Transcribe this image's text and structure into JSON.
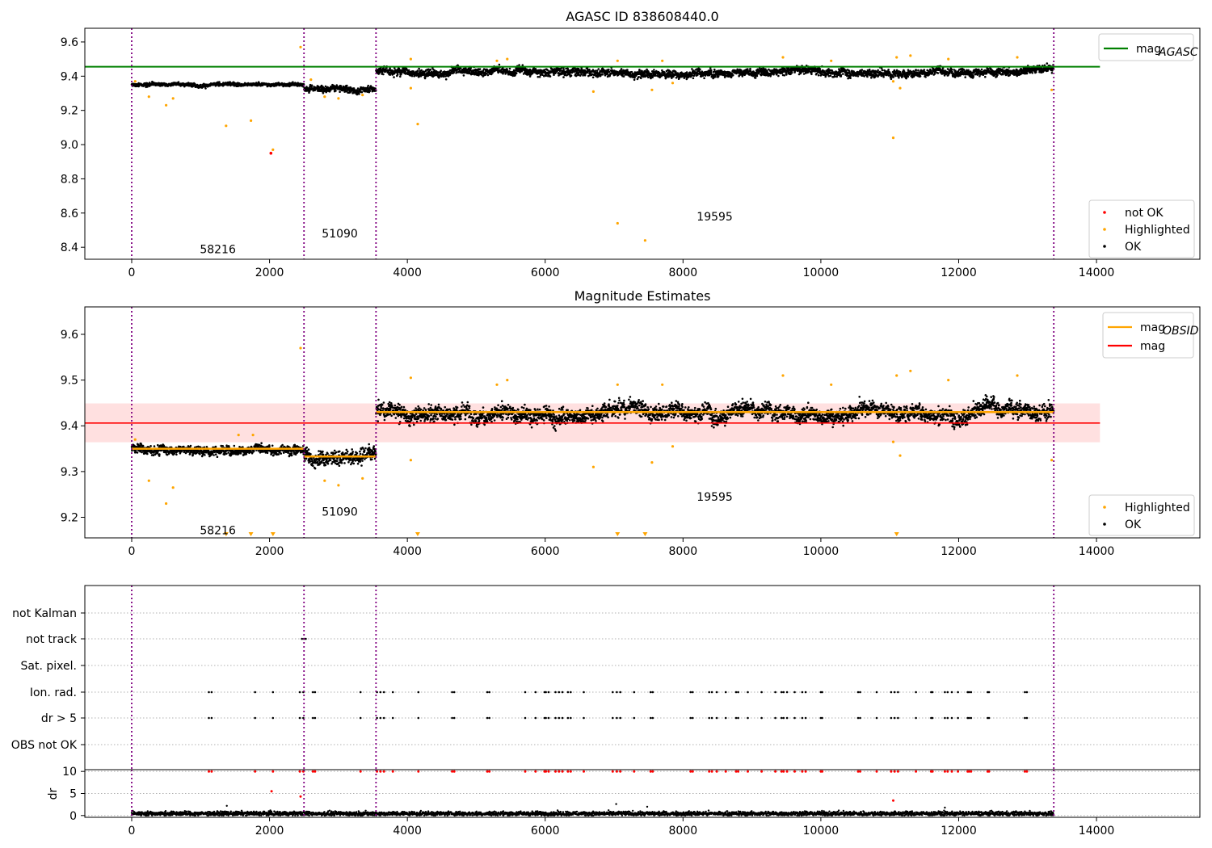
{
  "colors": {
    "ok": "#000000",
    "highlighted": "#ffa500",
    "not_ok": "#ff0000",
    "mag_agasc": "#008000",
    "mag_obsid": "#ffa500",
    "mag": "#ff0000",
    "band": "#ffcccc",
    "obs_lines": "#800080"
  },
  "chart_data": [
    {
      "type": "scatter",
      "title": "AGASC ID 838608440.0",
      "xlim": [
        -680,
        15500
      ],
      "ylim": [
        8.33,
        9.68
      ],
      "xticks": [
        0,
        2000,
        4000,
        6000,
        8000,
        10000,
        12000,
        14000
      ],
      "yticks": [
        8.4,
        8.6,
        8.8,
        9.0,
        9.2,
        9.4,
        9.6
      ],
      "obs_boundaries": [
        0,
        2500,
        3545,
        13380
      ],
      "obs_labels": [
        {
          "text": "58216",
          "x": 1250,
          "y": 8.39
        },
        {
          "text": "51090",
          "x": 3020,
          "y": 8.48
        },
        {
          "text": "19595",
          "x": 8460,
          "y": 8.58
        }
      ],
      "segments": [
        {
          "x0": 0,
          "x1": 2500,
          "mean": 9.35,
          "spread": 0.012
        },
        {
          "x0": 2500,
          "x1": 3545,
          "mean": 9.33,
          "spread": 0.022
        },
        {
          "x0": 3545,
          "x1": 13380,
          "mean": 9.43,
          "spread": 0.028
        }
      ],
      "mag_agasc_line": {
        "value": 9.455,
        "x0": -680,
        "x1": 14050
      },
      "highlighted_points": [
        [
          50,
          9.37
        ],
        [
          250,
          9.28
        ],
        [
          500,
          9.23
        ],
        [
          600,
          9.27
        ],
        [
          1370,
          9.11
        ],
        [
          1730,
          9.14
        ],
        [
          2050,
          8.97
        ],
        [
          2450,
          9.57
        ],
        [
          2600,
          9.38
        ],
        [
          2800,
          9.28
        ],
        [
          3000,
          9.27
        ],
        [
          3350,
          9.29
        ],
        [
          4050,
          9.5
        ],
        [
          4050,
          9.33
        ],
        [
          4150,
          9.12
        ],
        [
          5300,
          9.49
        ],
        [
          5450,
          9.5
        ],
        [
          6700,
          9.31
        ],
        [
          7050,
          8.54
        ],
        [
          7050,
          9.49
        ],
        [
          7450,
          8.44
        ],
        [
          7550,
          9.32
        ],
        [
          7700,
          9.49
        ],
        [
          7850,
          9.36
        ],
        [
          9450,
          9.51
        ],
        [
          10150,
          9.49
        ],
        [
          11050,
          9.04
        ],
        [
          11050,
          9.37
        ],
        [
          11100,
          9.51
        ],
        [
          11150,
          9.33
        ],
        [
          11300,
          9.52
        ],
        [
          11850,
          9.5
        ],
        [
          12850,
          9.51
        ],
        [
          13350,
          9.32
        ]
      ],
      "not_ok_points": [
        [
          2020,
          8.95
        ]
      ],
      "legend_top": [
        {
          "label": "mag",
          "sub": "AGASC"
        }
      ],
      "legend_bottom": [
        "not OK",
        "Highlighted",
        "OK"
      ]
    },
    {
      "type": "scatter",
      "title": "Magnitude Estimates",
      "xlim": [
        -680,
        15500
      ],
      "ylim": [
        9.155,
        9.66
      ],
      "xticks": [
        0,
        2000,
        4000,
        6000,
        8000,
        10000,
        12000,
        14000
      ],
      "yticks": [
        9.2,
        9.3,
        9.4,
        9.5,
        9.6
      ],
      "obs_boundaries": [
        0,
        2500,
        3545,
        13380
      ],
      "obs_labels": [
        {
          "text": "58216",
          "x": 1250,
          "y": 9.172
        },
        {
          "text": "51090",
          "x": 3020,
          "y": 9.212
        },
        {
          "text": "19595",
          "x": 8460,
          "y": 9.245
        }
      ],
      "segments": [
        {
          "x0": 0,
          "x1": 2500,
          "mean": 9.35,
          "spread": 0.012
        },
        {
          "x0": 2500,
          "x1": 3545,
          "mean": 9.333,
          "spread": 0.02
        },
        {
          "x0": 3545,
          "x1": 13380,
          "mean": 9.428,
          "spread": 0.022
        }
      ],
      "mag_obsid_lines": [
        {
          "x0": 0,
          "x1": 2500,
          "value": 9.35
        },
        {
          "x0": 2500,
          "x1": 3545,
          "value": 9.333
        },
        {
          "x0": 3545,
          "x1": 13380,
          "value": 9.43
        }
      ],
      "mag_line": {
        "value": 9.406,
        "x0": -680,
        "x1": 14050
      },
      "mag_band": [
        9.364,
        9.449
      ],
      "highlighted_points": [
        [
          50,
          9.37
        ],
        [
          250,
          9.28
        ],
        [
          500,
          9.23
        ],
        [
          600,
          9.265
        ],
        [
          1550,
          9.38
        ],
        [
          1760,
          9.38
        ],
        [
          2450,
          9.57
        ],
        [
          2800,
          9.28
        ],
        [
          3000,
          9.27
        ],
        [
          3350,
          9.285
        ],
        [
          4050,
          9.505
        ],
        [
          4050,
          9.325
        ],
        [
          5300,
          9.49
        ],
        [
          5450,
          9.5
        ],
        [
          6700,
          9.31
        ],
        [
          7050,
          9.49
        ],
        [
          7550,
          9.32
        ],
        [
          7700,
          9.49
        ],
        [
          7850,
          9.355
        ],
        [
          9450,
          9.51
        ],
        [
          10150,
          9.49
        ],
        [
          11050,
          9.365
        ],
        [
          11100,
          9.51
        ],
        [
          11150,
          9.335
        ],
        [
          11300,
          9.52
        ],
        [
          11850,
          9.5
        ],
        [
          12850,
          9.51
        ],
        [
          13350,
          9.325
        ]
      ],
      "offscale_markers_x": [
        1370,
        1730,
        2050,
        4150,
        7050,
        7450,
        11100
      ],
      "legend_top": [
        {
          "label": "mag",
          "sub": "OBSID"
        },
        {
          "label": "mag",
          "sub": ""
        }
      ],
      "legend_bottom": [
        "Highlighted",
        "OK"
      ]
    },
    {
      "type": "scatter",
      "title": "",
      "xlim": [
        -680,
        15500
      ],
      "xticks": [
        0,
        2000,
        4000,
        6000,
        8000,
        10000,
        12000,
        14000
      ],
      "obs_boundaries": [
        0,
        2500,
        3545,
        13380
      ],
      "flag_rows": [
        "not Kalman",
        "not track",
        "Sat. pixel.",
        "Ion. rad.",
        "dr > 5",
        "OBS not OK"
      ],
      "flag_events_x": [
        1120,
        1160,
        1790,
        2050,
        2440,
        2490,
        2630,
        2660,
        3320,
        3560,
        3610,
        3660,
        3790,
        4160,
        4650,
        4680,
        5160,
        5190,
        5710,
        5860,
        5990,
        6010,
        6050,
        6150,
        6200,
        6250,
        6330,
        6370,
        6560,
        6980,
        7040,
        7090,
        7290,
        7530,
        7560,
        8110,
        8140,
        8380,
        8420,
        8490,
        8620,
        8770,
        8800,
        8940,
        9140,
        9340,
        9430,
        9460,
        9510,
        9620,
        9730,
        9780,
        10000,
        10020,
        10540,
        10570,
        10810,
        11020,
        11070,
        11120,
        11380,
        11600,
        11620,
        11800,
        11840,
        11900,
        11990,
        12130,
        12150,
        12180,
        12420,
        12440,
        12960,
        12990
      ],
      "not_track_x": [
        2470,
        2500,
        2525
      ],
      "dr_axis": {
        "ylim": [
          -0.4,
          10.4
        ],
        "yticks": [
          0,
          5,
          10
        ],
        "ylabel": "dr"
      },
      "dr_segments": [
        {
          "x0": 0,
          "x1": 13380,
          "mean": 0.45,
          "spread": 0.35
        }
      ],
      "dr_red_points": [
        [
          2030,
          5.5
        ],
        [
          2450,
          4.3
        ],
        [
          11050,
          3.4
        ]
      ],
      "dr_black_points": [
        [
          1380,
          2.2
        ],
        [
          7030,
          2.6
        ],
        [
          7480,
          2.0
        ],
        [
          11800,
          1.8
        ]
      ]
    }
  ]
}
